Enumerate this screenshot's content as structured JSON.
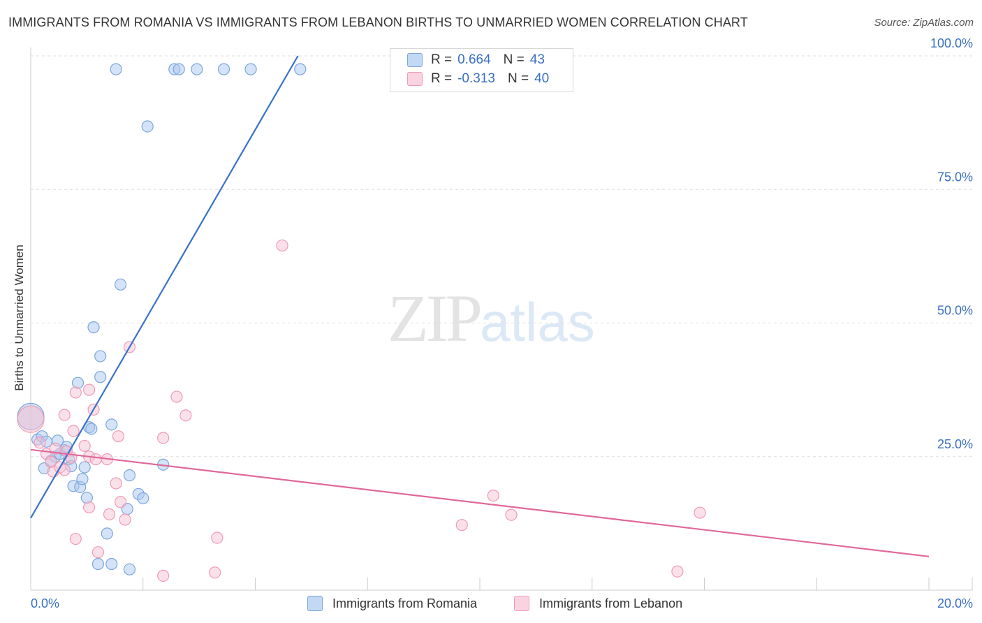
{
  "chart_data": {
    "type": "scatter",
    "title": "IMMIGRANTS FROM ROMANIA VS IMMIGRANTS FROM LEBANON BIRTHS TO UNMARRIED WOMEN CORRELATION CHART",
    "source": "Source: ZipAtlas.com",
    "xlabel": "",
    "ylabel": "Births to Unmarried Women",
    "xlim": [
      0,
      20
    ],
    "ylim": [
      0,
      100
    ],
    "x_tick_labels": [
      "0.0%",
      "20.0%"
    ],
    "y_tick_labels": [
      "100.0%",
      "75.0%",
      "50.0%",
      "25.0%"
    ],
    "y_tick_values": [
      100,
      75,
      50,
      25
    ],
    "watermark": {
      "zip": "ZIP",
      "atlas": "atlas"
    },
    "legend": [
      {
        "r_label": "R =",
        "r_value": "0.664",
        "n_label": "N =",
        "n_value": "43"
      },
      {
        "r_label": "R =",
        "r_value": "-0.313",
        "n_label": "N =",
        "n_value": "40"
      }
    ],
    "series": [
      {
        "name": "Immigrants from Romania",
        "color": "#7ea6dc",
        "fill": "#aac8ef",
        "line_color": "#3a72c8",
        "trend": {
          "x": [
            0.0,
            5.95
          ],
          "y": [
            13.5,
            100.0
          ]
        },
        "points": [
          {
            "x": 0.0,
            "y": 32.5,
            "big": true
          },
          {
            "x": 0.15,
            "y": 28.2
          },
          {
            "x": 0.25,
            "y": 28.8
          },
          {
            "x": 0.35,
            "y": 27.8
          },
          {
            "x": 0.3,
            "y": 22.8
          },
          {
            "x": 0.45,
            "y": 24.2
          },
          {
            "x": 0.55,
            "y": 25.0
          },
          {
            "x": 0.65,
            "y": 25.5
          },
          {
            "x": 0.75,
            "y": 26.2
          },
          {
            "x": 0.85,
            "y": 24.5
          },
          {
            "x": 0.9,
            "y": 23.2
          },
          {
            "x": 0.95,
            "y": 19.5
          },
          {
            "x": 1.1,
            "y": 19.3
          },
          {
            "x": 1.15,
            "y": 20.8
          },
          {
            "x": 1.2,
            "y": 23.0
          },
          {
            "x": 1.25,
            "y": 17.3
          },
          {
            "x": 1.3,
            "y": 30.5
          },
          {
            "x": 1.35,
            "y": 30.2
          },
          {
            "x": 1.05,
            "y": 38.8
          },
          {
            "x": 1.4,
            "y": 49.2
          },
          {
            "x": 1.55,
            "y": 39.9
          },
          {
            "x": 1.55,
            "y": 43.8
          },
          {
            "x": 1.8,
            "y": 31.0
          },
          {
            "x": 2.0,
            "y": 57.2
          },
          {
            "x": 1.9,
            "y": 97.5
          },
          {
            "x": 2.6,
            "y": 86.8
          },
          {
            "x": 3.2,
            "y": 97.5
          },
          {
            "x": 3.3,
            "y": 97.5
          },
          {
            "x": 3.7,
            "y": 97.5
          },
          {
            "x": 4.3,
            "y": 97.5
          },
          {
            "x": 4.9,
            "y": 97.5
          },
          {
            "x": 6.0,
            "y": 97.5
          },
          {
            "x": 2.2,
            "y": 21.5
          },
          {
            "x": 2.4,
            "y": 18.0
          },
          {
            "x": 2.5,
            "y": 17.2
          },
          {
            "x": 2.15,
            "y": 15.2
          },
          {
            "x": 1.7,
            "y": 10.6
          },
          {
            "x": 1.5,
            "y": 4.9
          },
          {
            "x": 1.8,
            "y": 4.9
          },
          {
            "x": 2.2,
            "y": 3.9
          },
          {
            "x": 2.95,
            "y": 23.5
          },
          {
            "x": 0.6,
            "y": 28.0
          },
          {
            "x": 0.8,
            "y": 26.8
          }
        ]
      },
      {
        "name": "Immigrants from Lebanon",
        "color": "#ee9bb6",
        "fill": "#f6c3d4",
        "line_color": "#e0689a",
        "trend": {
          "x": [
            0.0,
            20.0
          ],
          "y": [
            26.3,
            6.3
          ]
        },
        "points": [
          {
            "x": 0.0,
            "y": 32.0,
            "big": true
          },
          {
            "x": 0.2,
            "y": 27.6
          },
          {
            "x": 0.35,
            "y": 25.5
          },
          {
            "x": 0.45,
            "y": 24.0
          },
          {
            "x": 0.5,
            "y": 22.2
          },
          {
            "x": 0.65,
            "y": 23.0
          },
          {
            "x": 0.75,
            "y": 22.5
          },
          {
            "x": 0.8,
            "y": 26.0
          },
          {
            "x": 0.9,
            "y": 24.8
          },
          {
            "x": 0.95,
            "y": 29.8
          },
          {
            "x": 0.75,
            "y": 32.8
          },
          {
            "x": 1.0,
            "y": 37.0
          },
          {
            "x": 1.3,
            "y": 37.5
          },
          {
            "x": 1.4,
            "y": 33.8
          },
          {
            "x": 1.3,
            "y": 25.0
          },
          {
            "x": 1.2,
            "y": 27.0
          },
          {
            "x": 1.45,
            "y": 24.5
          },
          {
            "x": 1.7,
            "y": 24.5
          },
          {
            "x": 1.9,
            "y": 20.0
          },
          {
            "x": 1.95,
            "y": 28.8
          },
          {
            "x": 2.0,
            "y": 16.5
          },
          {
            "x": 1.75,
            "y": 14.2
          },
          {
            "x": 1.3,
            "y": 15.5
          },
          {
            "x": 2.1,
            "y": 13.2
          },
          {
            "x": 1.0,
            "y": 9.6
          },
          {
            "x": 1.5,
            "y": 7.1
          },
          {
            "x": 2.2,
            "y": 45.5
          },
          {
            "x": 2.95,
            "y": 28.5
          },
          {
            "x": 3.25,
            "y": 36.2
          },
          {
            "x": 3.45,
            "y": 32.7
          },
          {
            "x": 2.95,
            "y": 2.7
          },
          {
            "x": 4.15,
            "y": 9.8
          },
          {
            "x": 4.1,
            "y": 3.3
          },
          {
            "x": 5.6,
            "y": 64.5
          },
          {
            "x": 9.6,
            "y": 12.2
          },
          {
            "x": 10.3,
            "y": 17.7
          },
          {
            "x": 10.7,
            "y": 14.1
          },
          {
            "x": 14.9,
            "y": 14.5
          },
          {
            "x": 14.4,
            "y": 3.5
          },
          {
            "x": 0.55,
            "y": 26.5
          }
        ]
      }
    ]
  }
}
